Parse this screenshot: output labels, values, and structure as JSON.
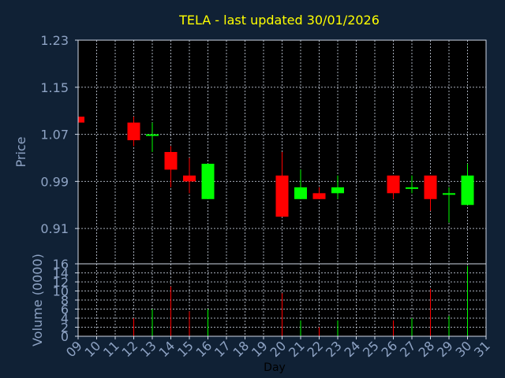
{
  "chart_data": {
    "type": "candlestick",
    "title": "TELA - last updated 30/01/2026",
    "xlabel": "Day",
    "ylabel_price": "Price",
    "ylabel_volume": "Volume (0000)",
    "colors": {
      "background": "#102135",
      "plot_background": "#000000",
      "grid": "#cfd8e6",
      "title": "#ffff00",
      "text": "#8ea3c4",
      "up": "#00ff00",
      "down": "#ff0000"
    },
    "x_ticks": [
      "09",
      "10",
      "11",
      "12",
      "13",
      "14",
      "15",
      "16",
      "17",
      "18",
      "19",
      "20",
      "21",
      "22",
      "23",
      "24",
      "25",
      "26",
      "27",
      "28",
      "29",
      "30",
      "31"
    ],
    "price_ticks": [
      "1.23",
      "1.15",
      "1.07",
      "0.99",
      "0.91"
    ],
    "price_range": [
      0.85,
      1.23
    ],
    "volume_ticks": [
      "16",
      "14",
      "12",
      "10",
      "8",
      "6",
      "4",
      "2",
      "0"
    ],
    "volume_range": [
      0,
      16
    ],
    "grid": true,
    "candles": [
      {
        "day": 9,
        "open": 1.1,
        "high": 1.1,
        "low": 1.09,
        "close": 1.09,
        "volume": 0.3
      },
      {
        "day": 12,
        "open": 1.09,
        "high": 1.1,
        "low": 1.05,
        "close": 1.06,
        "volume": 4.0
      },
      {
        "day": 13,
        "open": 1.07,
        "high": 1.09,
        "low": 1.04,
        "close": 1.07,
        "volume": 6.0
      },
      {
        "day": 14,
        "open": 1.04,
        "high": 1.05,
        "low": 0.98,
        "close": 1.01,
        "volume": 11.0
      },
      {
        "day": 15,
        "open": 1.0,
        "high": 1.03,
        "low": 0.97,
        "close": 0.99,
        "volume": 5.5
      },
      {
        "day": 16,
        "open": 0.96,
        "high": 1.02,
        "low": 0.96,
        "close": 1.02,
        "volume": 6.0
      },
      {
        "day": 20,
        "open": 1.0,
        "high": 1.04,
        "low": 0.93,
        "close": 0.93,
        "volume": 9.5
      },
      {
        "day": 21,
        "open": 0.96,
        "high": 1.01,
        "low": 0.96,
        "close": 0.98,
        "volume": 3.5
      },
      {
        "day": 22,
        "open": 0.97,
        "high": 0.98,
        "low": 0.96,
        "close": 0.96,
        "volume": 2.0
      },
      {
        "day": 23,
        "open": 0.97,
        "high": 1.0,
        "low": 0.96,
        "close": 0.98,
        "volume": 3.5
      },
      {
        "day": 26,
        "open": 1.0,
        "high": 1.0,
        "low": 0.96,
        "close": 0.97,
        "volume": 3.5
      },
      {
        "day": 27,
        "open": 0.98,
        "high": 1.0,
        "low": 0.97,
        "close": 0.98,
        "volume": 4.0
      },
      {
        "day": 28,
        "open": 1.0,
        "high": 1.0,
        "low": 0.94,
        "close": 0.96,
        "volume": 10.5
      },
      {
        "day": 29,
        "open": 0.97,
        "high": 0.98,
        "low": 0.92,
        "close": 0.97,
        "volume": 4.5
      },
      {
        "day": 30,
        "open": 0.95,
        "high": 1.02,
        "low": 0.95,
        "close": 1.0,
        "volume": 15.5
      }
    ]
  }
}
